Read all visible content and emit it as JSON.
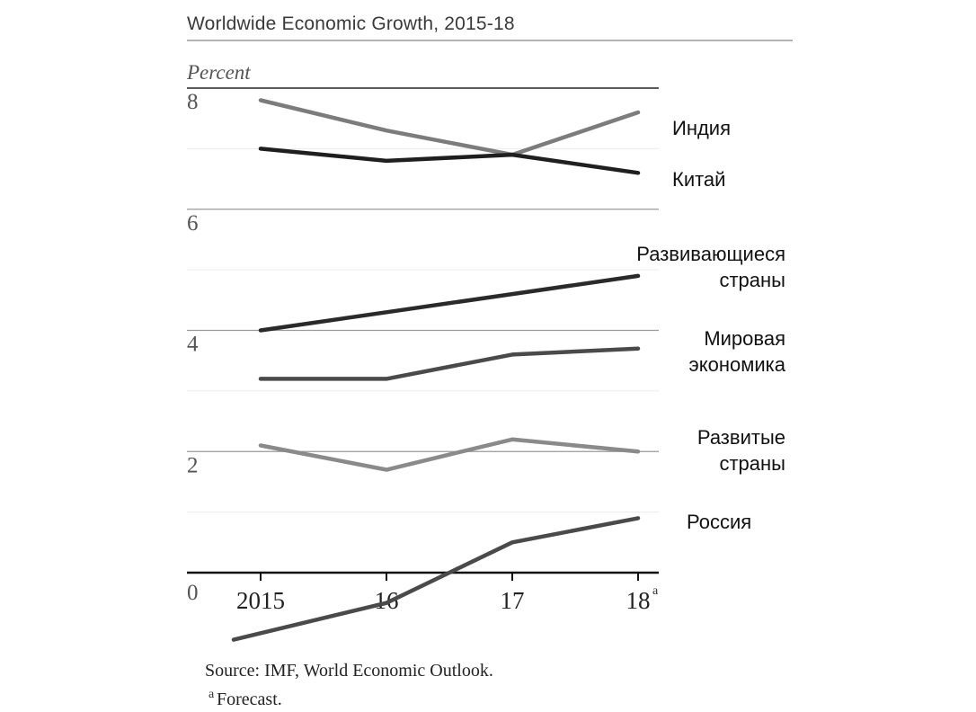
{
  "chart_data": {
    "type": "line",
    "title": "Worldwide Economic Growth, 2015-18",
    "ylabel": "Percent",
    "xlabel": "",
    "ylim": [
      0,
      8
    ],
    "yticks": [
      "0",
      "2",
      "4",
      "6",
      "8"
    ],
    "x": [
      "2015",
      "16",
      "17",
      "18"
    ],
    "x_footnote_mark": "a",
    "series": [
      {
        "name": "Индия",
        "values": [
          7.8,
          7.3,
          6.9,
          7.6
        ],
        "color": "#7c7c7c"
      },
      {
        "name": "Китай",
        "values": [
          7.0,
          6.8,
          6.9,
          6.6
        ],
        "color": "#1f1f1f"
      },
      {
        "name": "Развивающиеся страны",
        "values": [
          4.0,
          4.3,
          4.6,
          4.9
        ],
        "color": "#2a2a2a"
      },
      {
        "name": "Мировая экономика",
        "values": [
          3.2,
          3.2,
          3.6,
          3.7
        ],
        "color": "#4a4a4a"
      },
      {
        "name": "Развитые страны",
        "values": [
          2.1,
          1.7,
          2.2,
          2.0
        ],
        "color": "#8a8a8a"
      },
      {
        "name": "Россия",
        "values": [
          -1.0,
          -0.5,
          0.5,
          0.9
        ],
        "color": "#4a4a4a"
      }
    ],
    "grid": true,
    "legend": "right, labels next to line ends"
  },
  "footer": {
    "source": "Source: IMF, World Economic Outlook.",
    "footnote_mark": "a",
    "footnote": "Forecast."
  }
}
